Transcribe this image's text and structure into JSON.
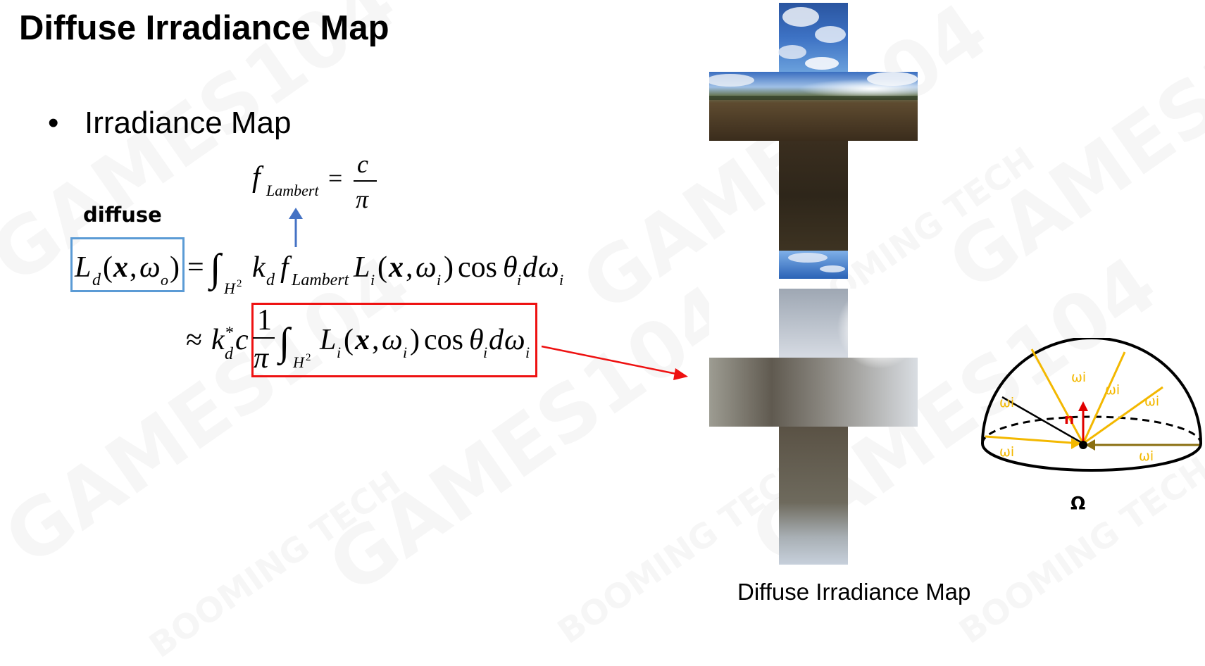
{
  "slide": {
    "title": "Diffuse Irradiance Map",
    "bullet_symbol": "•",
    "bullet_text": "Irradiance Map",
    "diffuse_label": "diffuse",
    "caption": "Diffuse Irradiance Map"
  },
  "hemisphere": {
    "ray_labels": [
      "ωi",
      "ωi",
      "ωi",
      "ωi",
      "ωi",
      "ωi"
    ],
    "normal_label": "n",
    "solid_angle_label": "Ω"
  },
  "watermarks": [
    "GAMES104",
    "BOOMING TECH"
  ],
  "colors": {
    "blue_box": "#5b9bd5",
    "red_box": "#ee1111",
    "arrow_blue": "#4472c4",
    "ray_yellow": "#f3b800",
    "normal_red": "#e00000"
  }
}
